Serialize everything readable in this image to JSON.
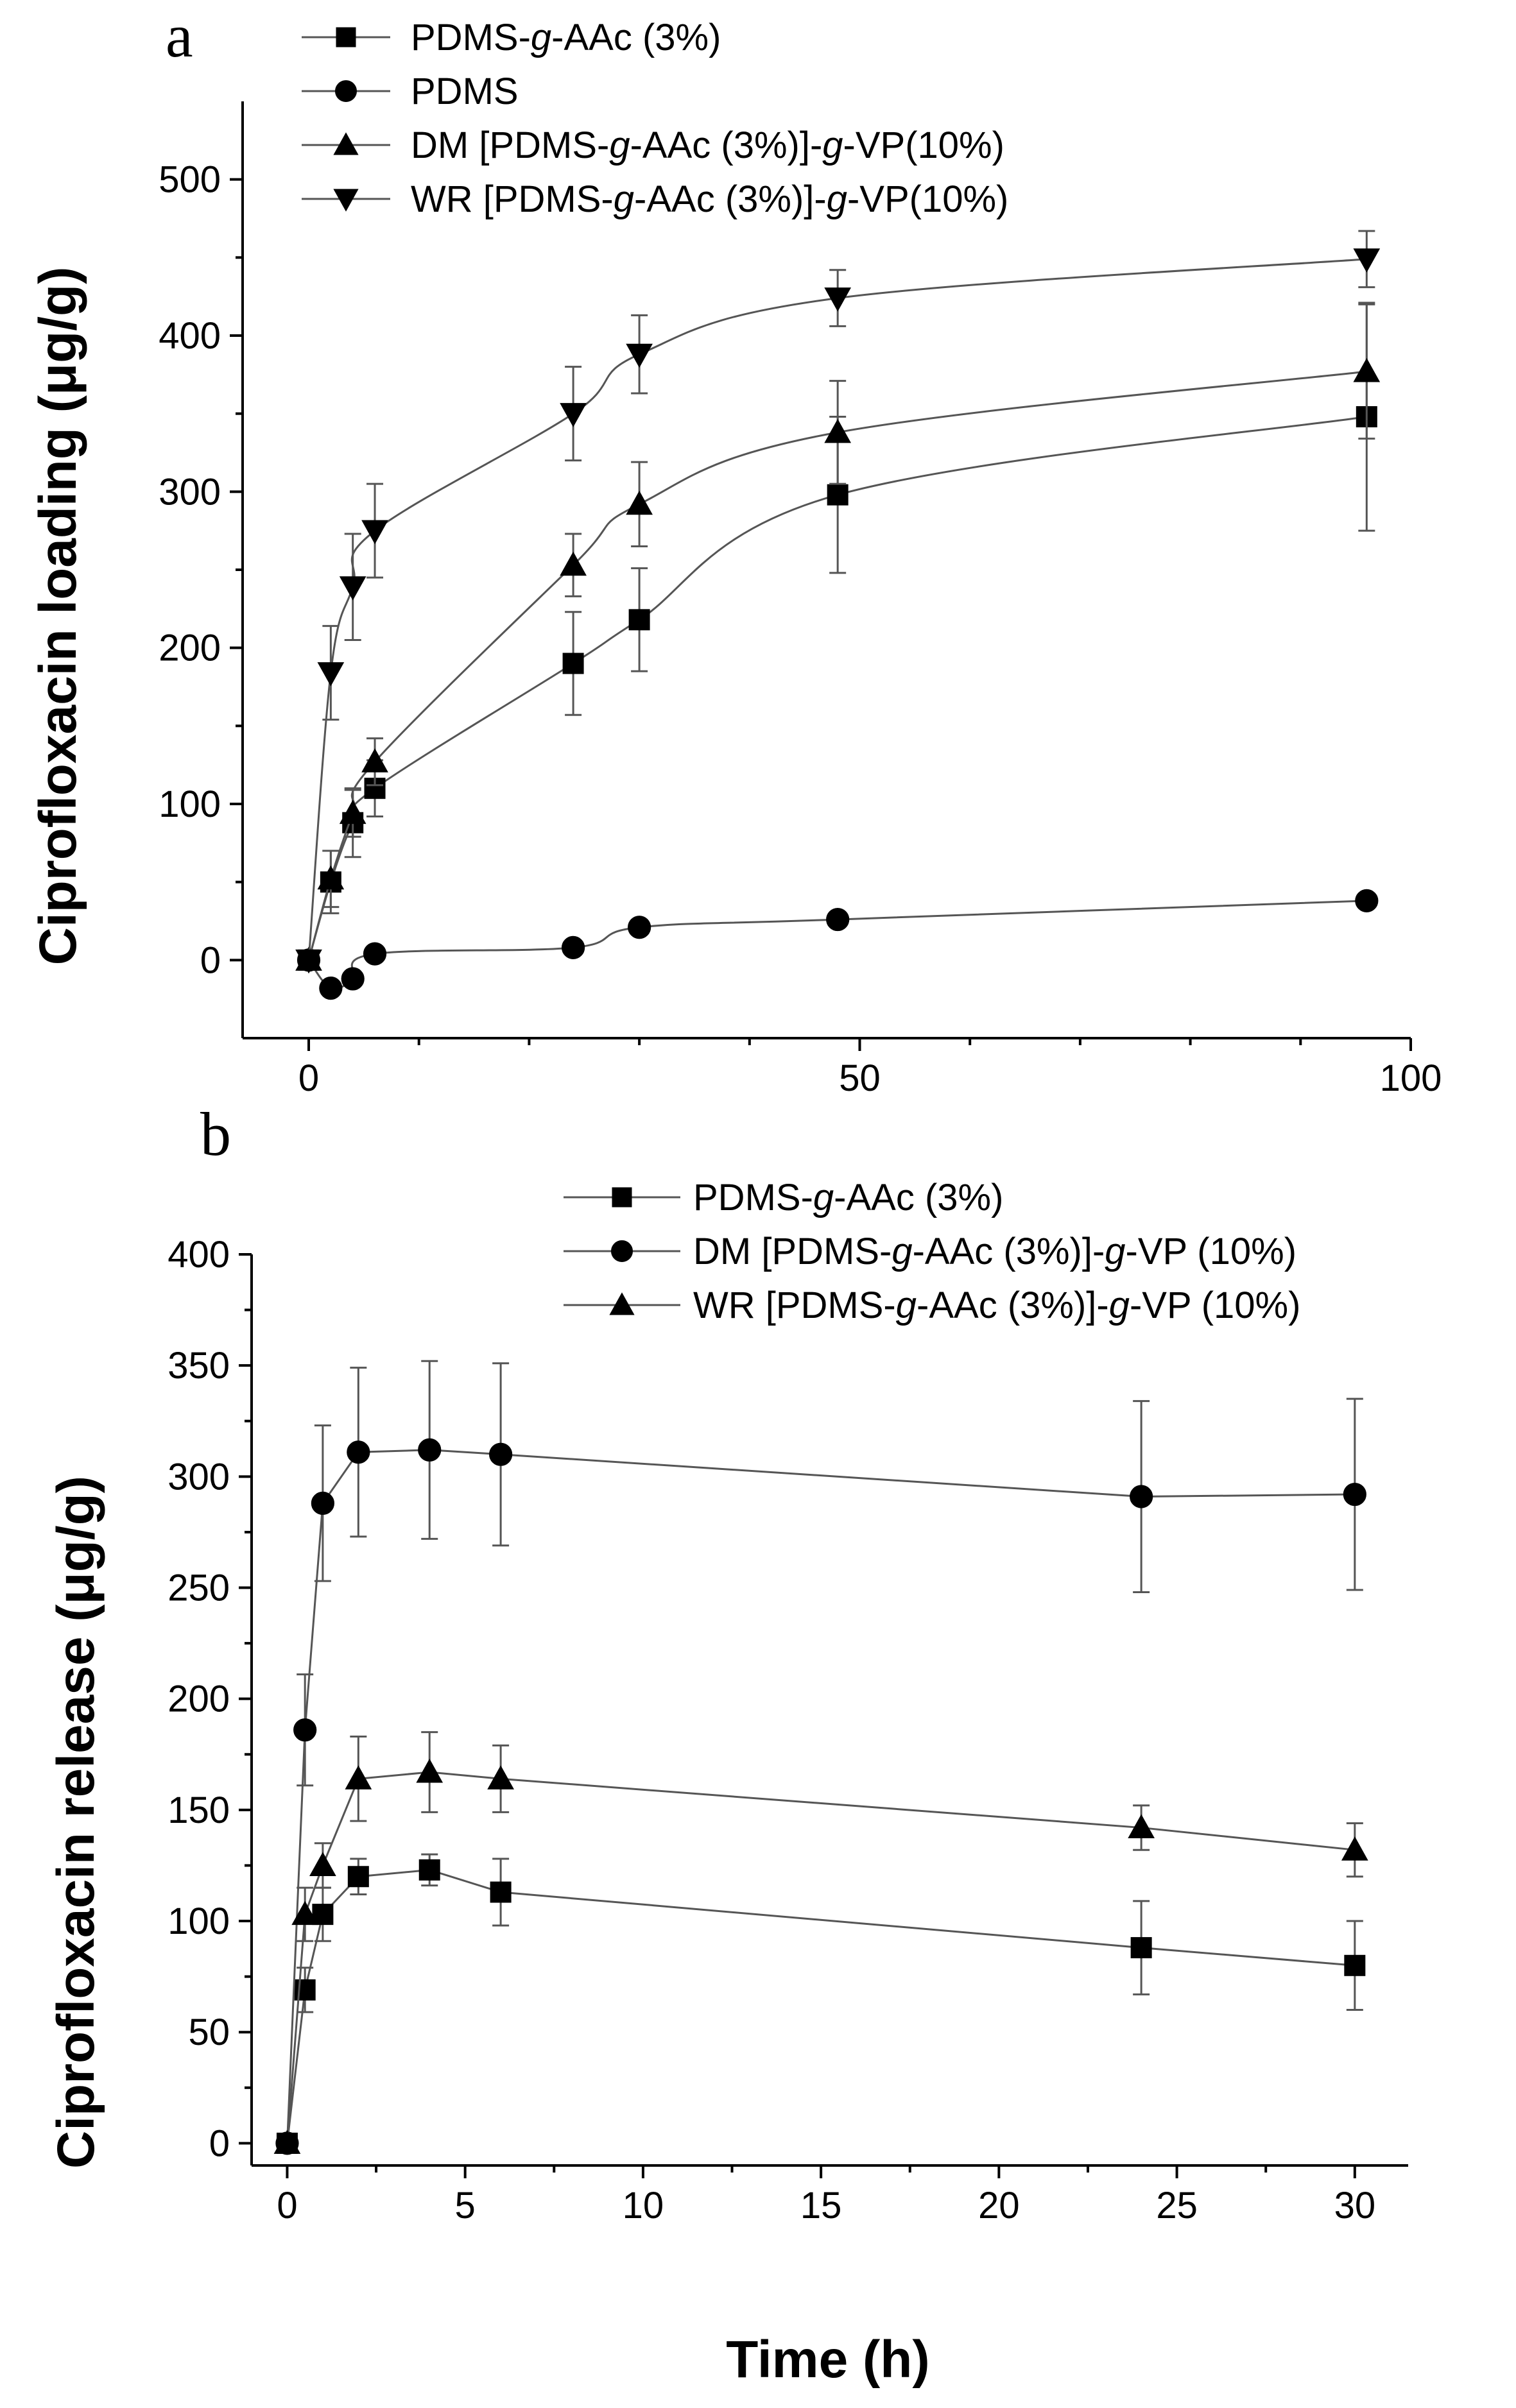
{
  "chart_data": [
    {
      "type": "scatter",
      "panel_label": "a",
      "title": "",
      "xlabel": "",
      "ylabel": "Ciprofloxacin loading (μg/g)",
      "xlim": [
        -6,
        100
      ],
      "ylim": [
        -50,
        550
      ],
      "x_ticks": [
        0,
        50,
        100
      ],
      "y_ticks": [
        0,
        100,
        200,
        300,
        400,
        500
      ],
      "x_tick_labels": [
        "0",
        "50",
        "100"
      ],
      "y_tick_labels": [
        "0",
        "100",
        "200",
        "300",
        "400",
        "500"
      ],
      "legend_position": "top-center",
      "series": [
        {
          "name_prefix": "PDMS-",
          "name_g": "g",
          "name_suffix": "-AAc (3%)",
          "marker": "square",
          "x": [
            0,
            2,
            4,
            6,
            24,
            30,
            48,
            96
          ],
          "y": [
            0,
            50,
            88,
            110,
            190,
            218,
            298,
            348
          ],
          "err": [
            0,
            20,
            22,
            18,
            33,
            33,
            50,
            73
          ]
        },
        {
          "name_prefix": "PDMS",
          "name_g": "",
          "name_suffix": "",
          "marker": "circle",
          "x": [
            0,
            2,
            4,
            6,
            24,
            30,
            48,
            96
          ],
          "y": [
            0,
            -18,
            -12,
            4,
            8,
            21,
            26,
            38
          ],
          "err": [
            0,
            0,
            0,
            0,
            0,
            0,
            0,
            0
          ]
        },
        {
          "name_prefix": "DM  [PDMS-",
          "name_g": "g",
          "name_suffix": "-AAc (3%)]-",
          "name_g2": "g",
          "name_suffix2": "-VP(10%)",
          "marker": "triangle-up",
          "x": [
            0,
            2,
            4,
            6,
            24,
            30,
            48,
            96
          ],
          "y": [
            0,
            52,
            94,
            127,
            253,
            292,
            338,
            377
          ],
          "err": [
            0,
            18,
            15,
            15,
            20,
            27,
            33,
            43
          ]
        },
        {
          "name_prefix": "WR  [PDMS-",
          "name_g": "g",
          "name_suffix": "-AAc (3%)]-",
          "name_g2": "g",
          "name_suffix2": "-VP(10%)",
          "marker": "triangle-down",
          "x": [
            0,
            2,
            4,
            6,
            24,
            30,
            48,
            96
          ],
          "y": [
            0,
            184,
            239,
            275,
            350,
            388,
            424,
            449
          ],
          "err": [
            0,
            30,
            34,
            30,
            30,
            25,
            18,
            18
          ]
        }
      ]
    },
    {
      "type": "line",
      "panel_label": "b",
      "title": "",
      "xlabel": "Time (h)",
      "ylabel": "Ciprofloxacin release (μg/g)",
      "xlim": [
        -1,
        31.5
      ],
      "ylim": [
        -10,
        400
      ],
      "x_ticks": [
        0,
        5,
        10,
        15,
        20,
        25,
        30
      ],
      "y_ticks": [
        0,
        50,
        100,
        150,
        200,
        250,
        300,
        350,
        400
      ],
      "x_tick_labels": [
        "0",
        "5",
        "10",
        "15",
        "20",
        "25",
        "30"
      ],
      "y_tick_labels": [
        "0",
        "50",
        "100",
        "150",
        "200",
        "250",
        "300",
        "350",
        "400"
      ],
      "legend_position": "top-right",
      "series": [
        {
          "name_prefix": "PDMS-",
          "name_g": "g",
          "name_suffix": "-AAc (3%)",
          "marker": "square",
          "x": [
            0,
            0.5,
            1,
            2,
            4,
            6,
            24,
            30
          ],
          "y": [
            0,
            69,
            103,
            120,
            123,
            113,
            88,
            80
          ],
          "err": [
            0,
            10,
            12,
            8,
            7,
            15,
            21,
            20
          ]
        },
        {
          "name_prefix": "DM  [PDMS-",
          "name_g": "g",
          "name_suffix": "-AAc (3%)]-",
          "name_g2": "g",
          "name_suffix2": "-VP (10%)",
          "marker": "circle",
          "x": [
            0,
            0.5,
            1,
            2,
            4,
            6,
            24,
            30
          ],
          "y": [
            0,
            186,
            288,
            311,
            312,
            310,
            291,
            292
          ],
          "err": [
            0,
            25,
            35,
            38,
            40,
            41,
            43,
            43
          ]
        },
        {
          "name_prefix": "WR  [PDMS-",
          "name_g": "g",
          "name_suffix": "-AAc (3%)]-",
          "name_g2": "g",
          "name_suffix2": "-VP (10%)",
          "marker": "triangle-up",
          "x": [
            0,
            0.5,
            1,
            2,
            4,
            6,
            24,
            30
          ],
          "y": [
            0,
            103,
            125,
            164,
            167,
            164,
            142,
            132
          ],
          "err": [
            0,
            12,
            10,
            19,
            18,
            15,
            10,
            12
          ]
        }
      ]
    }
  ]
}
